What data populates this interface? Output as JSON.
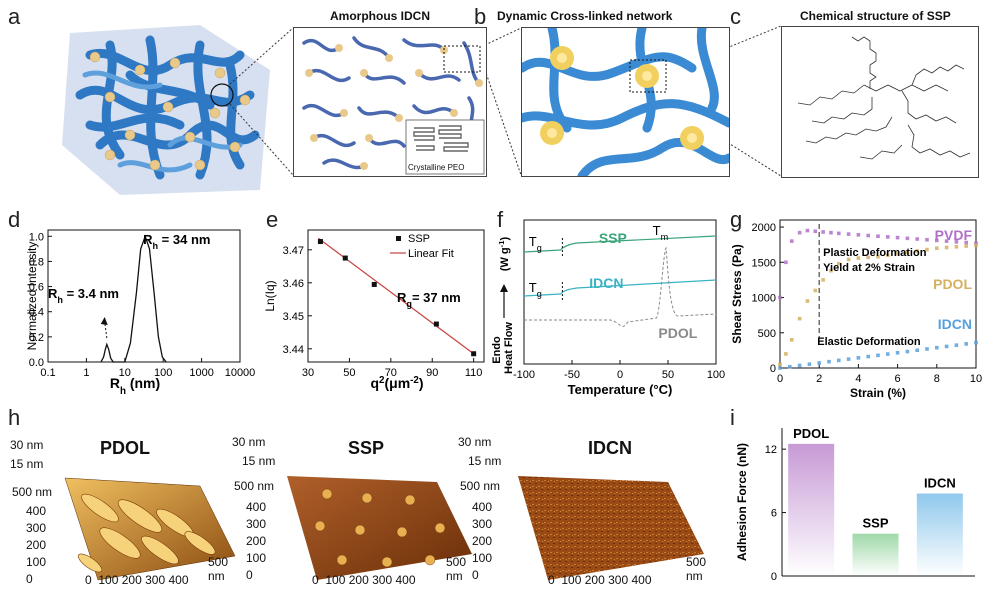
{
  "panels": {
    "a": {
      "letter": "a",
      "inset_title": "Amorphous IDCN",
      "crystal_label": "Crystalline PEO"
    },
    "b": {
      "letter": "b",
      "title": "Dynamic Cross-linked network"
    },
    "c": {
      "letter": "c",
      "title": "Chemical structure of SSP"
    },
    "d": {
      "letter": "d"
    },
    "e": {
      "letter": "e"
    },
    "f": {
      "letter": "f"
    },
    "g": {
      "letter": "g"
    },
    "h": {
      "letter": "h",
      "images": [
        {
          "label": "PDOL",
          "z1": "30 nm",
          "z2": "15 nm",
          "ylab": "500 nm",
          "yticks": [
            "400",
            "300",
            "200",
            "100",
            "0"
          ],
          "xticks": [
            "0",
            "100",
            "200",
            "300",
            "400",
            "500"
          ],
          "xunit": "nm"
        },
        {
          "label": "SSP",
          "z1": "30 nm",
          "z2": "15 nm",
          "ylab": "500 nm",
          "yticks": [
            "400",
            "300",
            "200",
            "100",
            "0"
          ],
          "xticks": [
            "0",
            "100",
            "200",
            "300",
            "400",
            "500"
          ],
          "xunit": "nm"
        },
        {
          "label": "IDCN",
          "z1": "30 nm",
          "z2": "15 nm",
          "ylab": "500 nm",
          "yticks": [
            "400",
            "300",
            "200",
            "100",
            "0"
          ],
          "xticks": [
            "0",
            "100",
            "200",
            "300",
            "400",
            "500"
          ],
          "xunit": "nm"
        }
      ]
    },
    "i": {
      "letter": "i"
    }
  },
  "chart_data": [
    {
      "panel": "d",
      "type": "line",
      "xscale": "log",
      "xlim": [
        0.1,
        10000
      ],
      "xticks": [
        "0.1",
        "1",
        "10",
        "100",
        "1000",
        "10000"
      ],
      "ylim": [
        0,
        1.05
      ],
      "yticks": [
        "0.0",
        "0.2",
        "0.4",
        "0.6",
        "0.8",
        "1.0"
      ],
      "xlabel_main": "R",
      "xlabel_sub": "h",
      "xlabel_unit": " (nm)",
      "ylabel": "Normalized Intensity",
      "series": [
        {
          "x": [
            2.4,
            2.8,
            3.1,
            3.4,
            3.8,
            4.3,
            5.0,
            6.0,
            10,
            14,
            20,
            26,
            34,
            44,
            58,
            75,
            95,
            120
          ],
          "y": [
            0,
            0.04,
            0.1,
            0.14,
            0.1,
            0.03,
            0,
            0,
            0,
            0.15,
            0.55,
            0.9,
            1.0,
            0.9,
            0.55,
            0.2,
            0.04,
            0
          ]
        }
      ],
      "annotations": [
        {
          "pre": "R",
          "sub": "h",
          "post": " = 34 nm"
        },
        {
          "pre": "R",
          "sub": "h",
          "post": " = 3.4 nm"
        }
      ]
    },
    {
      "panel": "e",
      "type": "scatter",
      "xlim": [
        30,
        115
      ],
      "xticks": [
        "30",
        "50",
        "70",
        "90",
        "110"
      ],
      "ylim": [
        3.436,
        3.476
      ],
      "yticks": [
        "3.44",
        "3.45",
        "3.46",
        "3.47"
      ],
      "xlabel_main": "q",
      "xlabel_sup": "2",
      "xlabel_unit": "(μm",
      "xlabel_unit_sup": "-2",
      "xlabel_unit_end": ")",
      "ylabel": "Ln(Iq)",
      "series": [
        {
          "name": "SSP",
          "x": [
            36,
            48,
            62,
            92,
            110
          ],
          "y": [
            3.4725,
            3.4675,
            3.4595,
            3.4475,
            3.4385
          ]
        },
        {
          "name": "Linear Fit",
          "x": [
            35,
            110
          ],
          "y": [
            3.4735,
            3.4385
          ]
        }
      ],
      "annotations": [
        {
          "pre": "R",
          "sub": "g",
          "post": "= 37 nm"
        }
      ]
    },
    {
      "panel": "f",
      "type": "line",
      "xlim": [
        -100,
        100
      ],
      "xticks": [
        "-100",
        "-50",
        "0",
        "50",
        "100"
      ],
      "xlabel": "Temperature (°C)",
      "ylabel_top": "(W g",
      "ylabel_top_sup": "-1",
      "ylabel_top_end": ")",
      "ylabel_endo": "Endo",
      "ylabel_heat": "Heat Flow",
      "series": [
        {
          "name": "SSP",
          "color": "#3aa57a"
        },
        {
          "name": "IDCN",
          "color": "#39b3c4"
        },
        {
          "name": "PDOL",
          "color": "#8a8a8a",
          "dashed": true
        }
      ],
      "annotations": [
        {
          "pre": "T",
          "sub": "g"
        },
        {
          "pre": "T",
          "sub": "g"
        },
        {
          "pre": "T",
          "sub": "m"
        }
      ]
    },
    {
      "panel": "g",
      "type": "scatter",
      "xlim": [
        0,
        10
      ],
      "xticks": [
        "0",
        "2",
        "4",
        "6",
        "8",
        "10"
      ],
      "ylim": [
        0,
        2100
      ],
      "yticks": [
        "0",
        "500",
        "1000",
        "1500",
        "2000"
      ],
      "xlabel": "Strain (%)",
      "ylabel": "Shear Stress (Pa)",
      "series": [
        {
          "name": "PVDF",
          "color": "#b070c8",
          "x": [
            0,
            0.3,
            0.6,
            1,
            1.4,
            1.8,
            2.2,
            2.6,
            3,
            3.5,
            4,
            4.5,
            5,
            5.5,
            6,
            6.5,
            7,
            7.5,
            8,
            8.5,
            9,
            9.5,
            10
          ],
          "y": [
            1000,
            1500,
            1800,
            1920,
            1950,
            1940,
            1930,
            1920,
            1910,
            1900,
            1890,
            1880,
            1870,
            1860,
            1850,
            1840,
            1830,
            1820,
            1810,
            1800,
            1790,
            1780,
            1770
          ]
        },
        {
          "name": "PDOL",
          "color": "#d4b060",
          "x": [
            0,
            0.3,
            0.6,
            1,
            1.4,
            1.8,
            2.2,
            2.6,
            3,
            3.5,
            4,
            4.5,
            5,
            5.5,
            6,
            6.5,
            7,
            7.5,
            8,
            8.5,
            9,
            9.5,
            10
          ],
          "y": [
            50,
            200,
            400,
            700,
            950,
            1100,
            1250,
            1380,
            1480,
            1540,
            1560,
            1570,
            1580,
            1600,
            1620,
            1640,
            1660,
            1680,
            1700,
            1710,
            1720,
            1730,
            1740
          ]
        },
        {
          "name": "IDCN",
          "color": "#5aa0dc",
          "x": [
            0,
            0.5,
            1,
            1.5,
            2,
            2.5,
            3,
            3.5,
            4,
            4.5,
            5,
            5.5,
            6,
            6.5,
            7,
            7.5,
            8,
            8.5,
            9,
            9.5,
            10
          ],
          "y": [
            0,
            18,
            36,
            54,
            72,
            90,
            108,
            126,
            144,
            162,
            180,
            198,
            216,
            234,
            252,
            270,
            288,
            306,
            324,
            342,
            360
          ]
        }
      ],
      "annotations": [
        {
          "text": "Plastic Deformation"
        },
        {
          "text": "Yield at 2% Strain"
        },
        {
          "text": "Elastic Deformation"
        }
      ]
    },
    {
      "panel": "i",
      "type": "bar",
      "categories": [
        "PDOL",
        "SSP",
        "IDCN"
      ],
      "values": [
        12.5,
        4,
        7.8
      ],
      "colors": [
        "#c79ad6",
        "#9fd8a8",
        "#8fc8ec"
      ],
      "ylim": [
        0,
        14
      ],
      "yticks": [
        "0",
        "6",
        "12"
      ],
      "ylabel": "Adhesion Force (nN)"
    }
  ]
}
